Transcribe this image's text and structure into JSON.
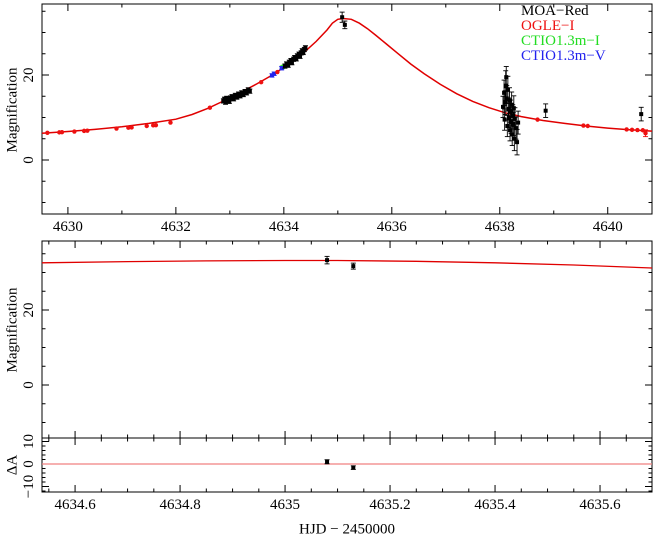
{
  "figure": {
    "xlabel": "HJD − 2450000",
    "top_ylabel": "Magnification",
    "mid_ylabel": "Magnification",
    "res_ylabel": "ΔA",
    "background": "#ffffff",
    "axis_color": "#000000"
  },
  "legend": {
    "items": [
      {
        "label": "MOA−Red",
        "color": "#000000"
      },
      {
        "label": "OGLE−I",
        "color": "#ee1111"
      },
      {
        "label": "CTIO1.3m−I",
        "color": "#22dd22"
      },
      {
        "label": "CTIO1.3m−V",
        "color": "#2222ee"
      }
    ]
  },
  "chart_data": [
    {
      "id": "main",
      "type": "scatter",
      "ylabel": "Magnification",
      "xlim": [
        4629.52,
        4640.82
      ],
      "ylim": [
        -12.71,
        36.71
      ],
      "xticks": [
        4630,
        4632,
        4634,
        4636,
        4638,
        4640
      ],
      "xtick_labels": [
        "4630",
        "4632",
        "4634",
        "4636",
        "4638",
        "4640"
      ],
      "show_xtick_labels": true,
      "xminor": 1,
      "yticks": [
        0,
        20
      ],
      "ytick_labels": [
        "0",
        "20"
      ],
      "yminor": 5,
      "curves": [
        {
          "name": "model",
          "color": "#e00000",
          "width": 1.5,
          "points": [
            [
              4629.52,
              6.3
            ],
            [
              4630.0,
              6.7
            ],
            [
              4630.5,
              7.2
            ],
            [
              4631.0,
              7.8
            ],
            [
              4631.5,
              8.6
            ],
            [
              4632.0,
              9.6
            ],
            [
              4632.3,
              10.7
            ],
            [
              4632.6,
              12.2
            ],
            [
              4632.9,
              14.0
            ],
            [
              4633.2,
              15.9
            ],
            [
              4633.5,
              17.9
            ],
            [
              4633.8,
              20.1
            ],
            [
              4634.0,
              21.8
            ],
            [
              4634.2,
              23.6
            ],
            [
              4634.4,
              25.6
            ],
            [
              4634.6,
              27.9
            ],
            [
              4634.8,
              30.6
            ],
            [
              4634.9,
              32.2
            ],
            [
              4635.0,
              33.1
            ],
            [
              4635.1,
              33.3
            ],
            [
              4635.25,
              33.1
            ],
            [
              4635.4,
              32.2
            ],
            [
              4635.55,
              30.9
            ],
            [
              4635.7,
              29.4
            ],
            [
              4635.9,
              27.3
            ],
            [
              4636.1,
              25.2
            ],
            [
              4636.35,
              22.6
            ],
            [
              4636.6,
              20.3
            ],
            [
              4636.9,
              17.8
            ],
            [
              4637.2,
              15.6
            ],
            [
              4637.5,
              13.8
            ],
            [
              4637.8,
              12.3
            ],
            [
              4638.1,
              11.1
            ],
            [
              4638.4,
              10.2
            ],
            [
              4638.8,
              9.3
            ],
            [
              4639.2,
              8.6
            ],
            [
              4639.6,
              8.0
            ],
            [
              4640.0,
              7.5
            ],
            [
              4640.4,
              7.1
            ],
            [
              4640.82,
              6.8
            ]
          ]
        }
      ],
      "series": [
        {
          "name": "CTIO1.3m-I",
          "color": "#22dd22",
          "marker": "square",
          "size": 3,
          "points": [
            [
              4633.97,
              21.8,
              0.3
            ],
            [
              4634.0,
              22.0,
              0.3
            ]
          ]
        },
        {
          "name": "CTIO1.3m-V",
          "color": "#2222ee",
          "marker": "square",
          "size": 3,
          "points": [
            [
              4633.78,
              19.9,
              0.4
            ],
            [
              4633.82,
              20.3,
              0.4
            ],
            [
              4633.96,
              21.6,
              0.4
            ]
          ]
        },
        {
          "name": "OGLE-I",
          "color": "#ee1111",
          "marker": "circle",
          "size": 2.2,
          "points": [
            [
              4629.62,
              6.4,
              0
            ],
            [
              4629.84,
              6.5,
              0
            ],
            [
              4629.89,
              6.55,
              0
            ],
            [
              4630.12,
              6.7,
              0
            ],
            [
              4630.3,
              6.85,
              0
            ],
            [
              4630.36,
              6.9,
              0
            ],
            [
              4630.9,
              7.4,
              0
            ],
            [
              4631.12,
              7.6,
              0
            ],
            [
              4631.18,
              7.65,
              0
            ],
            [
              4631.46,
              8.0,
              0
            ],
            [
              4631.58,
              8.15,
              0
            ],
            [
              4631.63,
              8.2,
              0
            ],
            [
              4631.9,
              8.8,
              0
            ],
            [
              4632.63,
              12.3,
              0
            ],
            [
              4632.88,
              14.0,
              0
            ],
            [
              4633.58,
              18.3,
              0
            ],
            [
              4633.88,
              20.7,
              0
            ],
            [
              4638.7,
              9.5,
              0
            ],
            [
              4639.55,
              8.1,
              0
            ],
            [
              4639.63,
              8.0,
              0
            ],
            [
              4640.35,
              7.2,
              0
            ],
            [
              4640.45,
              7.1,
              0
            ],
            [
              4640.55,
              7.05,
              0
            ],
            [
              4640.65,
              7.0,
              0
            ],
            [
              4640.7,
              6.3,
              0.8
            ]
          ]
        },
        {
          "name": "MOA-Red",
          "color": "#000000",
          "marker": "square",
          "size": 3,
          "points": [
            [
              4632.88,
              13.9,
              0.5
            ],
            [
              4632.9,
              14.3,
              0.5
            ],
            [
              4632.92,
              13.6,
              0.5
            ],
            [
              4632.94,
              14.5,
              0.5
            ],
            [
              4632.96,
              14.1,
              0.5
            ],
            [
              4632.99,
              13.8,
              0.5
            ],
            [
              4633.01,
              14.6,
              0.5
            ],
            [
              4633.04,
              14.9,
              0.5
            ],
            [
              4633.07,
              14.4,
              0.5
            ],
            [
              4633.1,
              15.2,
              0.5
            ],
            [
              4633.13,
              14.8,
              0.5
            ],
            [
              4633.16,
              15.5,
              0.5
            ],
            [
              4633.19,
              15.1,
              0.5
            ],
            [
              4633.22,
              15.8,
              0.5
            ],
            [
              4633.25,
              15.4,
              0.5
            ],
            [
              4633.28,
              16.1,
              0.5
            ],
            [
              4633.31,
              15.8,
              0.5
            ],
            [
              4633.34,
              16.5,
              0.5
            ],
            [
              4633.37,
              16.2,
              0.5
            ],
            [
              4634.02,
              22.1,
              0.5
            ],
            [
              4634.05,
              22.6,
              0.5
            ],
            [
              4634.08,
              22.3,
              0.5
            ],
            [
              4634.1,
              23.0,
              0.5
            ],
            [
              4634.13,
              23.4,
              0.5
            ],
            [
              4634.15,
              22.9,
              0.5
            ],
            [
              4634.18,
              23.7,
              0.5
            ],
            [
              4634.2,
              24.1,
              0.5
            ],
            [
              4634.23,
              23.8,
              0.5
            ],
            [
              4634.25,
              24.5,
              0.5
            ],
            [
              4634.28,
              24.9,
              0.5
            ],
            [
              4634.3,
              24.4,
              0.5
            ],
            [
              4634.32,
              25.2,
              0.5
            ],
            [
              4634.34,
              25.7,
              0.5
            ],
            [
              4634.36,
              25.3,
              0.5
            ],
            [
              4634.38,
              26.0,
              0.5
            ],
            [
              4634.4,
              26.4,
              0.5
            ],
            [
              4635.08,
              33.6,
              1.2
            ],
            [
              4635.13,
              31.8,
              0.9
            ],
            [
              4638.06,
              12.5,
              2.5
            ],
            [
              4638.08,
              15.8,
              3.0
            ],
            [
              4638.09,
              9.5,
              2.5
            ],
            [
              4638.1,
              13.5,
              2.8
            ],
            [
              4638.11,
              17.5,
              3.5
            ],
            [
              4638.12,
              19.5,
              2.5
            ],
            [
              4638.13,
              14.5,
              3.0
            ],
            [
              4638.14,
              8.0,
              2.5
            ],
            [
              4638.15,
              16.5,
              3.2
            ],
            [
              4638.16,
              12.0,
              2.6
            ],
            [
              4638.17,
              10.0,
              2.4
            ],
            [
              4638.18,
              14.0,
              3.0
            ],
            [
              4638.19,
              7.0,
              2.5
            ],
            [
              4638.2,
              11.5,
              2.6
            ],
            [
              4638.21,
              9.0,
              2.8
            ],
            [
              4638.22,
              13.0,
              3.0
            ],
            [
              4638.23,
              6.0,
              2.6
            ],
            [
              4638.24,
              10.5,
              2.5
            ],
            [
              4638.25,
              8.5,
              2.7
            ],
            [
              4638.26,
              12.2,
              2.9
            ],
            [
              4638.27,
              5.0,
              2.8
            ],
            [
              4638.28,
              9.8,
              2.5
            ],
            [
              4638.3,
              7.5,
              2.6
            ],
            [
              4638.32,
              4.2,
              3.0
            ],
            [
              4638.34,
              8.8,
              2.7
            ],
            [
              4638.85,
              11.6,
              1.6
            ],
            [
              4640.62,
              10.8,
              1.6
            ]
          ]
        }
      ]
    },
    {
      "id": "mid",
      "type": "scatter",
      "ylabel": "Magnification",
      "xlim": [
        4634.537,
        4635.699
      ],
      "ylim": [
        -14.13,
        38.4
      ],
      "xticks": [
        4634.6,
        4634.8,
        4635.0,
        4635.2,
        4635.4,
        4635.6
      ],
      "xtick_labels": [
        "4634.6",
        "4634.8",
        "4635",
        "4635.2",
        "4635.4",
        "4635.6"
      ],
      "show_xtick_labels": false,
      "xminor": 0.05,
      "yticks": [
        0,
        20
      ],
      "ytick_labels": [
        "0",
        "20"
      ],
      "yminor": 5,
      "curves": [
        {
          "name": "model",
          "color": "#e00000",
          "width": 1.3,
          "points": [
            [
              4634.537,
              32.6
            ],
            [
              4634.7,
              32.9
            ],
            [
              4634.85,
              33.1
            ],
            [
              4635.0,
              33.2
            ],
            [
              4635.1,
              33.2
            ],
            [
              4635.25,
              33.0
            ],
            [
              4635.4,
              32.6
            ],
            [
              4635.55,
              32.0
            ],
            [
              4635.699,
              31.2
            ]
          ]
        }
      ],
      "series": [
        {
          "name": "MOA-Red",
          "color": "#000000",
          "marker": "square",
          "size": 3,
          "points": [
            [
              4635.08,
              33.3,
              1.0
            ],
            [
              4635.13,
              31.7,
              0.8
            ]
          ]
        }
      ]
    },
    {
      "id": "res",
      "type": "scatter",
      "ylabel": "ΔA",
      "xlim": [
        4634.537,
        4635.699
      ],
      "ylim": [
        -12.44,
        11.56
      ],
      "xticks": [
        4634.6,
        4634.8,
        4635.0,
        4635.2,
        4635.4,
        4635.6
      ],
      "xtick_labels": [
        "4634.6",
        "4634.8",
        "4635",
        "4635.2",
        "4635.4",
        "4635.6"
      ],
      "show_xtick_labels": true,
      "xminor": 0.05,
      "yticks": [
        -10,
        0,
        10
      ],
      "ytick_labels": [
        "−10",
        "0",
        "10"
      ],
      "yminor": 2,
      "curves": [
        {
          "name": "zero-line",
          "color": "#f08080",
          "width": 1.3,
          "points": [
            [
              4634.537,
              0
            ],
            [
              4635.699,
              0
            ]
          ]
        }
      ],
      "series": [
        {
          "name": "MOA-Red",
          "color": "#000000",
          "marker": "square",
          "size": 3,
          "points": [
            [
              4635.08,
              1.0,
              0.9
            ],
            [
              4635.13,
              -1.6,
              0.8
            ]
          ]
        }
      ]
    }
  ]
}
